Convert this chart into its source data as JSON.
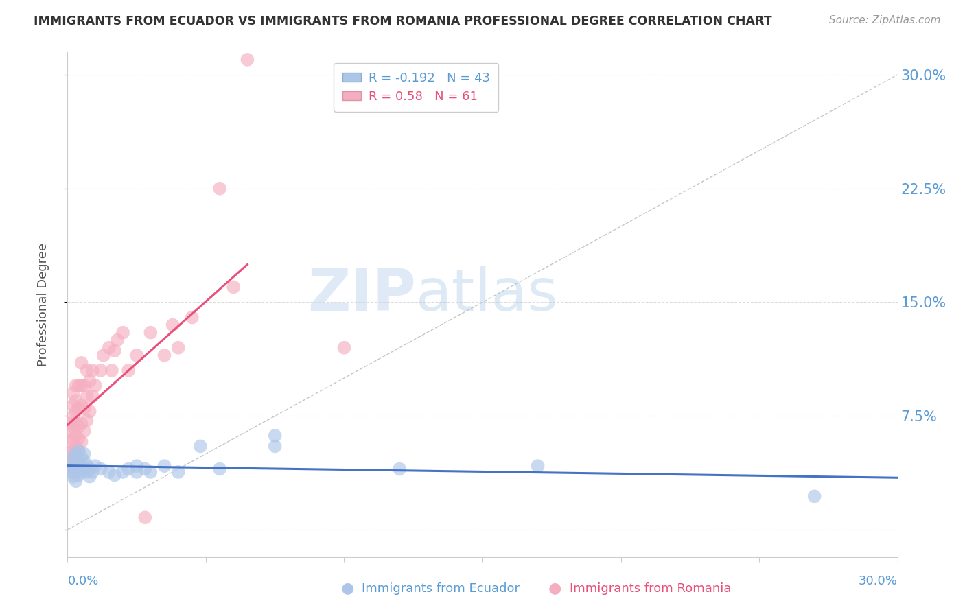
{
  "title": "IMMIGRANTS FROM ECUADOR VS IMMIGRANTS FROM ROMANIA PROFESSIONAL DEGREE CORRELATION CHART",
  "source": "Source: ZipAtlas.com",
  "ylabel": "Professional Degree",
  "watermark": "ZIPatlas",
  "x_min": 0.0,
  "x_max": 0.3,
  "y_min": -0.018,
  "y_max": 0.315,
  "y_ticks": [
    0.0,
    0.075,
    0.15,
    0.225,
    0.3
  ],
  "y_tick_labels": [
    "",
    "7.5%",
    "15.0%",
    "22.5%",
    "30.0%"
  ],
  "ecuador_R": -0.192,
  "ecuador_N": 43,
  "romania_R": 0.58,
  "romania_N": 61,
  "ecuador_color": "#adc6e8",
  "romania_color": "#f5aec0",
  "ecuador_line_color": "#4472c4",
  "romania_line_color": "#e8507a",
  "diagonal_color": "#b8b8b8",
  "legend_ecuador_label": "Immigrants from Ecuador",
  "legend_romania_label": "Immigrants from Romania",
  "title_color": "#333333",
  "source_color": "#999999",
  "axis_label_color": "#5b9bd5",
  "ecuador_points": [
    [
      0.001,
      0.042
    ],
    [
      0.001,
      0.038
    ],
    [
      0.002,
      0.048
    ],
    [
      0.002,
      0.04
    ],
    [
      0.002,
      0.035
    ],
    [
      0.003,
      0.05
    ],
    [
      0.003,
      0.044
    ],
    [
      0.003,
      0.038
    ],
    [
      0.003,
      0.032
    ],
    [
      0.004,
      0.045
    ],
    [
      0.004,
      0.04
    ],
    [
      0.004,
      0.052
    ],
    [
      0.004,
      0.036
    ],
    [
      0.005,
      0.048
    ],
    [
      0.005,
      0.042
    ],
    [
      0.005,
      0.038
    ],
    [
      0.006,
      0.045
    ],
    [
      0.006,
      0.05
    ],
    [
      0.006,
      0.04
    ],
    [
      0.007,
      0.042
    ],
    [
      0.007,
      0.038
    ],
    [
      0.008,
      0.035
    ],
    [
      0.008,
      0.04
    ],
    [
      0.009,
      0.038
    ],
    [
      0.01,
      0.042
    ],
    [
      0.012,
      0.04
    ],
    [
      0.015,
      0.038
    ],
    [
      0.017,
      0.036
    ],
    [
      0.02,
      0.038
    ],
    [
      0.022,
      0.04
    ],
    [
      0.025,
      0.042
    ],
    [
      0.025,
      0.038
    ],
    [
      0.028,
      0.04
    ],
    [
      0.03,
      0.038
    ],
    [
      0.035,
      0.042
    ],
    [
      0.04,
      0.038
    ],
    [
      0.048,
      0.055
    ],
    [
      0.055,
      0.04
    ],
    [
      0.075,
      0.062
    ],
    [
      0.075,
      0.055
    ],
    [
      0.12,
      0.04
    ],
    [
      0.17,
      0.042
    ],
    [
      0.27,
      0.022
    ]
  ],
  "romania_points": [
    [
      0.001,
      0.038
    ],
    [
      0.001,
      0.042
    ],
    [
      0.001,
      0.05
    ],
    [
      0.001,
      0.058
    ],
    [
      0.001,
      0.065
    ],
    [
      0.001,
      0.07
    ],
    [
      0.002,
      0.045
    ],
    [
      0.002,
      0.052
    ],
    [
      0.002,
      0.06
    ],
    [
      0.002,
      0.068
    ],
    [
      0.002,
      0.075
    ],
    [
      0.002,
      0.082
    ],
    [
      0.002,
      0.09
    ],
    [
      0.003,
      0.048
    ],
    [
      0.003,
      0.055
    ],
    [
      0.003,
      0.062
    ],
    [
      0.003,
      0.07
    ],
    [
      0.003,
      0.078
    ],
    [
      0.003,
      0.085
    ],
    [
      0.003,
      0.095
    ],
    [
      0.004,
      0.052
    ],
    [
      0.004,
      0.06
    ],
    [
      0.004,
      0.068
    ],
    [
      0.004,
      0.08
    ],
    [
      0.004,
      0.095
    ],
    [
      0.005,
      0.058
    ],
    [
      0.005,
      0.07
    ],
    [
      0.005,
      0.082
    ],
    [
      0.005,
      0.095
    ],
    [
      0.005,
      0.11
    ],
    [
      0.006,
      0.065
    ],
    [
      0.006,
      0.08
    ],
    [
      0.006,
      0.095
    ],
    [
      0.007,
      0.072
    ],
    [
      0.007,
      0.088
    ],
    [
      0.007,
      0.105
    ],
    [
      0.008,
      0.078
    ],
    [
      0.008,
      0.098
    ],
    [
      0.008,
      0.04
    ],
    [
      0.009,
      0.088
    ],
    [
      0.009,
      0.105
    ],
    [
      0.01,
      0.095
    ],
    [
      0.012,
      0.105
    ],
    [
      0.013,
      0.115
    ],
    [
      0.015,
      0.12
    ],
    [
      0.016,
      0.105
    ],
    [
      0.017,
      0.118
    ],
    [
      0.018,
      0.125
    ],
    [
      0.02,
      0.13
    ],
    [
      0.022,
      0.105
    ],
    [
      0.025,
      0.115
    ],
    [
      0.028,
      0.008
    ],
    [
      0.03,
      0.13
    ],
    [
      0.035,
      0.115
    ],
    [
      0.038,
      0.135
    ],
    [
      0.04,
      0.12
    ],
    [
      0.045,
      0.14
    ],
    [
      0.055,
      0.225
    ],
    [
      0.06,
      0.16
    ],
    [
      0.065,
      0.31
    ],
    [
      0.1,
      0.12
    ]
  ]
}
